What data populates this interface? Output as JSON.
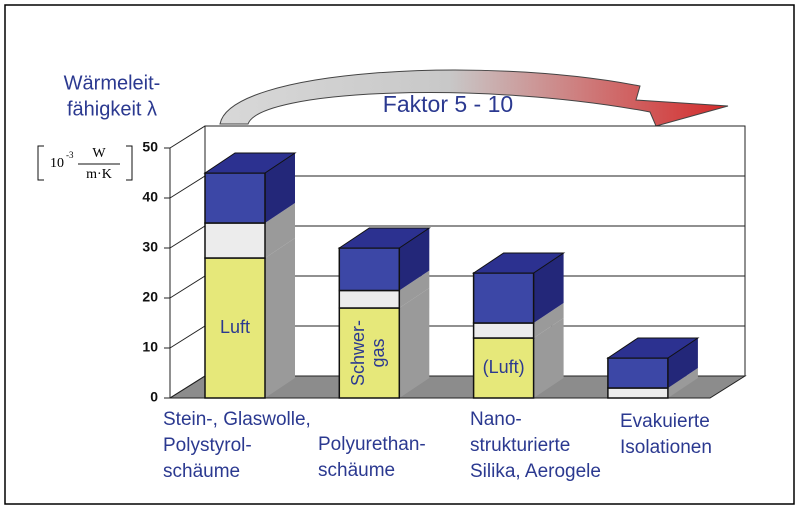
{
  "chart_data": {
    "type": "bar",
    "stacked": true,
    "y_label": [
      "Wärmeleit-",
      "fähigkeit λ"
    ],
    "y_unit": {
      "base": "10",
      "exponent": "-3",
      "numerator": "W",
      "denominator": "m·K"
    },
    "annotation": "Faktor 5 - 10",
    "categories": [
      [
        "Stein-, Glaswolle,",
        "Polystyrol-",
        "schäume"
      ],
      [
        "Polyurethan-",
        "schäume"
      ],
      [
        "Nano-",
        "strukturierte",
        "Silika, Aerogele"
      ],
      [
        "Evakuierte",
        "Isolationen"
      ]
    ],
    "series": [
      {
        "color": "#e6e87a",
        "values": [
          28,
          18,
          12,
          0
        ],
        "labels": [
          [
            "Luft"
          ],
          [
            "Schwer-",
            "gas"
          ],
          [
            "(Luft)"
          ],
          null
        ]
      },
      {
        "color": "#ececec",
        "values": [
          7,
          3.5,
          3,
          2
        ]
      },
      {
        "color": "#3c47a6",
        "values": [
          10,
          8.5,
          10,
          6
        ]
      }
    ],
    "ylim": [
      0,
      50
    ],
    "yticks": [
      0,
      10,
      20,
      30,
      40,
      50
    ],
    "grid": true
  }
}
